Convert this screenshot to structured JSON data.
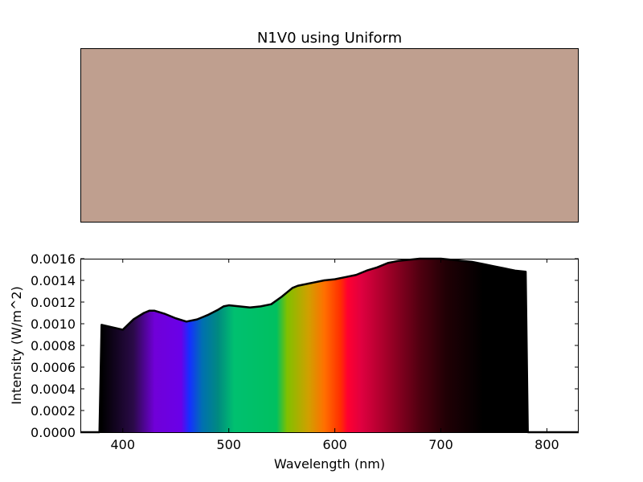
{
  "figure": {
    "title": "N1V0 using Uniform",
    "swatch_color": "#bf9f8f"
  },
  "chart_data": {
    "type": "area",
    "title": "",
    "xlabel": "Wavelength (nm)",
    "ylabel": "Intensity (W/m^2)",
    "xlim": [
      360,
      830
    ],
    "ylim": [
      0,
      0.0016
    ],
    "grid": false,
    "x_ticks": [
      400,
      500,
      600,
      700,
      800
    ],
    "y_ticks": [
      0.0,
      0.0002,
      0.0004,
      0.0006,
      0.0008,
      0.001,
      0.0012,
      0.0014,
      0.0016
    ],
    "x_tick_labels": [
      "400",
      "500",
      "600",
      "700",
      "800"
    ],
    "y_tick_labels": [
      "0.0000",
      "0.0002",
      "0.0004",
      "0.0006",
      "0.0008",
      "0.0010",
      "0.0012",
      "0.0014",
      "0.0016"
    ],
    "fill": "spectrum-colors",
    "line_color": "#000000",
    "x": [
      360,
      378,
      380,
      400,
      410,
      420,
      425,
      430,
      440,
      450,
      460,
      470,
      480,
      490,
      495,
      500,
      510,
      520,
      530,
      540,
      550,
      560,
      565,
      570,
      580,
      590,
      600,
      610,
      620,
      630,
      640,
      650,
      655,
      660,
      670,
      680,
      690,
      700,
      710,
      720,
      730,
      740,
      750,
      760,
      770,
      780,
      782,
      830
    ],
    "y": [
      0,
      0,
      0.00099,
      0.000945,
      0.00104,
      0.0011,
      0.00112,
      0.00112,
      0.00109,
      0.00105,
      0.00102,
      0.00104,
      0.00108,
      0.00113,
      0.00116,
      0.00117,
      0.00116,
      0.00115,
      0.00116,
      0.00118,
      0.00125,
      0.00133,
      0.00135,
      0.00136,
      0.00138,
      0.0014,
      0.00141,
      0.00143,
      0.00145,
      0.00149,
      0.00152,
      0.00156,
      0.00157,
      0.00158,
      0.00159,
      0.0016,
      0.0016,
      0.0016,
      0.00159,
      0.00158,
      0.00157,
      0.00155,
      0.00153,
      0.00151,
      0.00149,
      0.00148,
      0,
      0
    ]
  }
}
